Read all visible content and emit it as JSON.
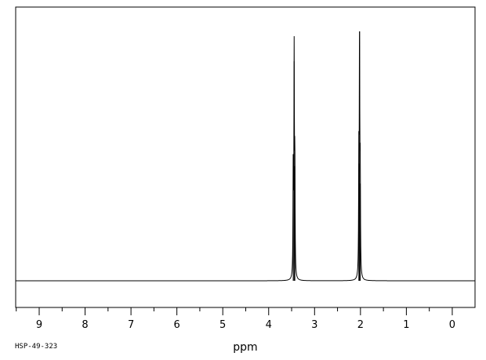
{
  "chart_data": {
    "type": "line",
    "title": "",
    "xlabel": "ppm",
    "ylabel": "",
    "x_reversed": true,
    "xlim": [
      9.5,
      -0.5
    ],
    "ylim": [
      -0.08,
      1.0
    ],
    "x_ticks": [
      9,
      8,
      7,
      6,
      5,
      4,
      3,
      2,
      1,
      0
    ],
    "x_tick_labels": [
      "9",
      "8",
      "7",
      "6",
      "5",
      "4",
      "3",
      "2",
      "1",
      "0"
    ],
    "grid": false,
    "legend": "none",
    "sample_id": "HSP-49-323",
    "peaks": [
      {
        "center_ppm": 3.45,
        "height": 0.88,
        "components": [
          3.465,
          3.445,
          3.43
        ],
        "component_heights": [
          0.45,
          0.88,
          0.46
        ]
      },
      {
        "center_ppm": 2.02,
        "height": 1.0,
        "components": [
          2.035,
          2.02,
          2.005
        ],
        "component_heights": [
          0.47,
          1.0,
          0.39
        ]
      }
    ],
    "baseline": 0.0,
    "colors": {
      "line": "#000000",
      "frame": "#000000",
      "background": "#ffffff"
    }
  }
}
